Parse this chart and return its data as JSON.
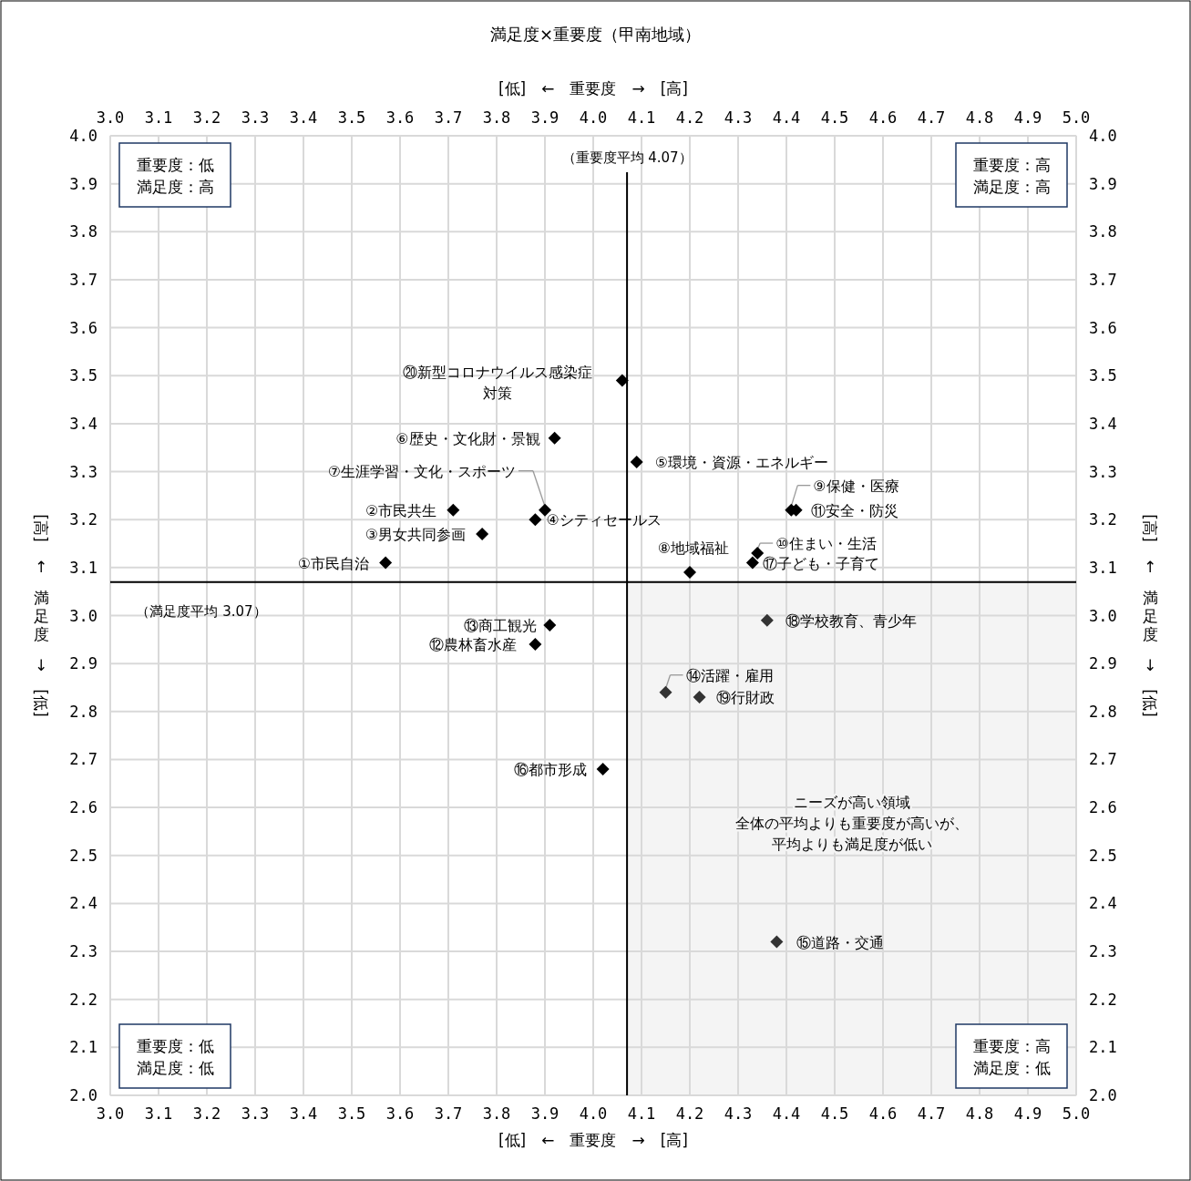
{
  "chart_data": {
    "type": "scatter",
    "title": "満足度×重要度（甲南地域）",
    "xlabel": "[低]　←　重要度　→　[高]",
    "x2label": "[低]　←　重要度　→　[高]",
    "ylabel": "[高]　↑　満足度　↓　[低]",
    "y2label": "[高]　↑　満足度　↓　[低]",
    "xlim": [
      3.0,
      5.0
    ],
    "x2lim": [
      3.0,
      5.0
    ],
    "ylim": [
      2.0,
      4.0
    ],
    "y2lim": [
      2.0,
      4.0
    ],
    "xticks": [
      {
        "value": 3,
        "label": "3.0"
      },
      3.1,
      3.2,
      3.3,
      3.4,
      3.5,
      3.6,
      3.7,
      3.8,
      3.9,
      {
        "value": 4,
        "label": "4.0"
      },
      4.1,
      4.2,
      4.3,
      4.4,
      4.5,
      4.6,
      4.7,
      4.8,
      4.9,
      {
        "value": 5,
        "label": "5.0"
      }
    ],
    "x2ticks": [
      {
        "value": 3,
        "label": "3.0"
      },
      3.1,
      3.2,
      3.3,
      3.4,
      3.5,
      3.6,
      3.7,
      3.8,
      3.9,
      {
        "value": 4,
        "label": "4.0"
      },
      4.1,
      4.2,
      4.3,
      4.4,
      4.5,
      4.6,
      4.7,
      4.8,
      4.9,
      {
        "value": 5,
        "label": "5.0"
      }
    ],
    "yticks": [
      {
        "value": 2,
        "label": "2.0"
      },
      2.1,
      2.2,
      2.3,
      2.4,
      2.5,
      2.6,
      2.7,
      2.8,
      2.9,
      {
        "value": 3,
        "label": "3.0"
      },
      3.1,
      3.2,
      3.3,
      3.4,
      3.5,
      3.6,
      3.7,
      3.8,
      3.9,
      {
        "value": 4,
        "label": "4.0"
      }
    ],
    "y2ticks": [
      {
        "value": 2,
        "label": "2.0"
      },
      2.1,
      2.2,
      2.3,
      2.4,
      2.5,
      2.6,
      2.7,
      2.8,
      2.9,
      {
        "value": 3,
        "label": "3.0"
      },
      3.1,
      3.2,
      3.3,
      3.4,
      3.5,
      3.6,
      3.7,
      3.8,
      3.9,
      {
        "value": 4,
        "label": "4.0"
      }
    ],
    "grid": true,
    "marker": "diamond",
    "series": [
      {
        "name": "①市民自治",
        "color": "#000000",
        "x": [
          3.57
        ],
        "values": [
          3.11
        ]
      },
      {
        "name": "②市民共生",
        "color": "#000000",
        "x": [
          3.71
        ],
        "values": [
          3.22
        ]
      },
      {
        "name": "③男女共同参画",
        "color": "#000000",
        "x": [
          3.77
        ],
        "values": [
          3.17
        ]
      },
      {
        "name": "④シティセールス",
        "color": "#000000",
        "x": [
          3.88
        ],
        "values": [
          3.2
        ]
      },
      {
        "name": "⑤環境・資源・エネルギー",
        "color": "#000000",
        "x": [
          4.09
        ],
        "values": [
          3.32
        ]
      },
      {
        "name": "⑥歴史・文化財・景観",
        "color": "#000000",
        "x": [
          3.92
        ],
        "values": [
          3.37
        ]
      },
      {
        "name": "⑦生涯学習・文化・スポーツ",
        "color": "#000000",
        "x": [
          3.9
        ],
        "values": [
          3.22
        ]
      },
      {
        "name": "⑧地域福祉",
        "color": "#000000",
        "x": [
          4.2
        ],
        "values": [
          3.09
        ]
      },
      {
        "name": "⑨保健・医療",
        "color": "#000000",
        "x": [
          4.41
        ],
        "values": [
          3.22
        ]
      },
      {
        "name": "⑩住まい・生活",
        "color": "#000000",
        "x": [
          4.34
        ],
        "values": [
          3.13
        ]
      },
      {
        "name": "⑪安全・防災",
        "color": "#000000",
        "x": [
          4.42
        ],
        "values": [
          3.22
        ]
      },
      {
        "name": "⑫農林畜水産",
        "color": "#000000",
        "x": [
          3.88
        ],
        "values": [
          2.94
        ]
      },
      {
        "name": "⑬商工観光",
        "color": "#000000",
        "x": [
          3.91
        ],
        "values": [
          2.98
        ]
      },
      {
        "name": "⑭活躍・雇用",
        "color": "#333333",
        "x": [
          4.15
        ],
        "values": [
          2.84
        ]
      },
      {
        "name": "⑮道路・交通",
        "color": "#333333",
        "x": [
          4.38
        ],
        "values": [
          2.32
        ]
      },
      {
        "name": "⑯都市形成",
        "color": "#000000",
        "x": [
          4.02
        ],
        "values": [
          2.68
        ]
      },
      {
        "name": "⑰子ども・子育て",
        "color": "#000000",
        "x": [
          4.33
        ],
        "values": [
          3.11
        ]
      },
      {
        "name": "⑱学校教育、青少年",
        "color": "#333333",
        "x": [
          4.36
        ],
        "values": [
          2.99
        ]
      },
      {
        "name": "⑲行財政",
        "color": "#333333",
        "x": [
          4.22
        ],
        "values": [
          2.83
        ]
      },
      {
        "name": "⑳新型コロナウイルス感染症対策",
        "color": "#000000",
        "x": [
          4.06
        ],
        "values": [
          3.49
        ]
      }
    ],
    "ref_lines": [
      {
        "axis": "x",
        "value": 4.07,
        "label": "（重要度平均 4.07）",
        "color": "#000000"
      },
      {
        "axis": "y",
        "value": 3.07,
        "label": "（満足度平均 3.07）",
        "color": "#000000"
      }
    ],
    "bands": [
      {
        "axis": "x",
        "from": 4.07,
        "to": 5.0,
        "label": "ニーズが高い領域",
        "color": "#f4f4f4"
      }
    ],
    "annotations": [
      "重要度：低",
      "満足度：高",
      "重要度：高",
      "満足度：高",
      "重要度：低",
      "満足度：低",
      "重要度：高",
      "満足度：低",
      "全体の平均よりも重要度が高いが、",
      "平均よりも満足度が低い"
    ]
  }
}
